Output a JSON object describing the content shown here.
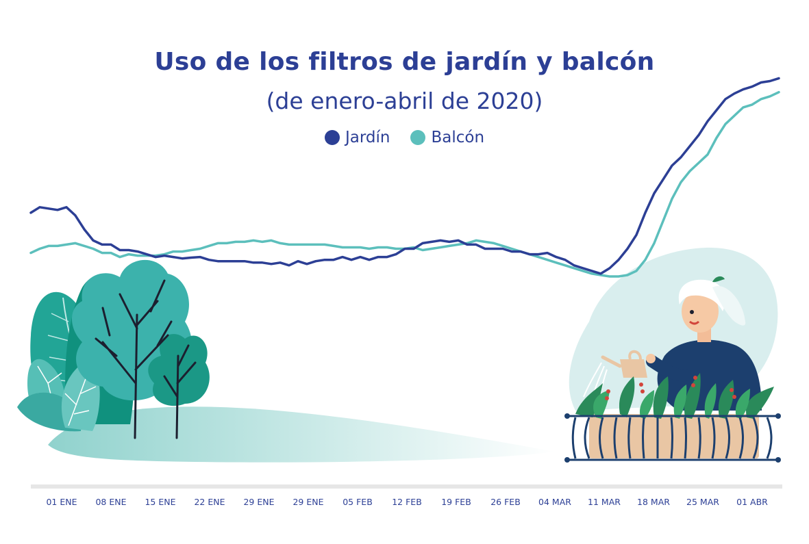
{
  "chart_data": {
    "type": "line",
    "title": "Uso de los filtros de jardín y balcón",
    "subtitle": "(de enero-abril de 2020)",
    "legend_placement": "top-center",
    "grid": false,
    "x_tick_labels": [
      "01 ENE",
      "08 ENE",
      "15 ENE",
      "22 ENE",
      "29 ENE",
      "29 ENE",
      "05 FEB",
      "12 FEB",
      "19 FEB",
      "26 FEB",
      "04 MAR",
      "11 MAR",
      "18 MAR",
      "25 MAR",
      "01 ABR"
    ],
    "ylim": [
      0,
      100
    ],
    "series": [
      {
        "name": "Jardín",
        "color": "#2c3f95",
        "values": [
          43,
          45,
          44.5,
          44,
          45,
          42,
          37,
          33,
          31.5,
          31.5,
          29.5,
          29.5,
          29,
          28,
          27,
          27.5,
          27,
          26.5,
          26.8,
          27,
          26,
          25.5,
          25.5,
          25.5,
          25.5,
          25,
          25,
          24.5,
          25,
          24,
          25.5,
          24.5,
          25.5,
          26,
          26,
          27,
          26,
          27,
          26,
          27,
          27,
          28,
          30,
          30,
          32,
          32.5,
          33,
          32.5,
          33,
          31.5,
          31.5,
          30,
          30,
          30,
          29,
          29,
          28,
          28,
          28.5,
          27,
          26,
          24,
          23,
          22,
          21,
          23,
          26,
          30,
          35,
          43,
          50,
          55,
          60,
          63,
          67,
          71,
          76,
          80,
          84,
          86,
          87.5,
          88.5,
          90,
          90.5,
          91.5
        ]
      },
      {
        "name": "Balcón",
        "color": "#5cbfbc",
        "values": [
          28.5,
          30,
          31,
          31,
          31.5,
          32,
          31,
          30,
          28.5,
          28.5,
          27,
          28,
          27.5,
          27.5,
          27.5,
          28,
          29,
          29,
          29.5,
          30,
          31,
          32,
          32,
          32.5,
          32.5,
          33,
          32.5,
          33,
          32,
          31.5,
          31.5,
          31.5,
          31.5,
          31.5,
          31,
          30.5,
          30.5,
          30.5,
          30,
          30.5,
          30.5,
          30,
          30,
          30.5,
          29.5,
          30,
          30.5,
          31,
          31.5,
          32,
          33,
          32.5,
          32,
          31,
          30,
          29,
          28,
          27,
          26,
          25,
          24,
          23,
          22,
          21,
          20.5,
          20,
          20,
          20.5,
          22,
          26,
          32,
          40,
          48,
          54,
          58,
          61,
          64,
          70,
          75,
          78,
          81,
          82,
          84,
          85,
          86.5
        ]
      }
    ]
  },
  "illustration": {
    "left": "trees-and-bushes",
    "right": "woman-watering-balcony-plants"
  }
}
